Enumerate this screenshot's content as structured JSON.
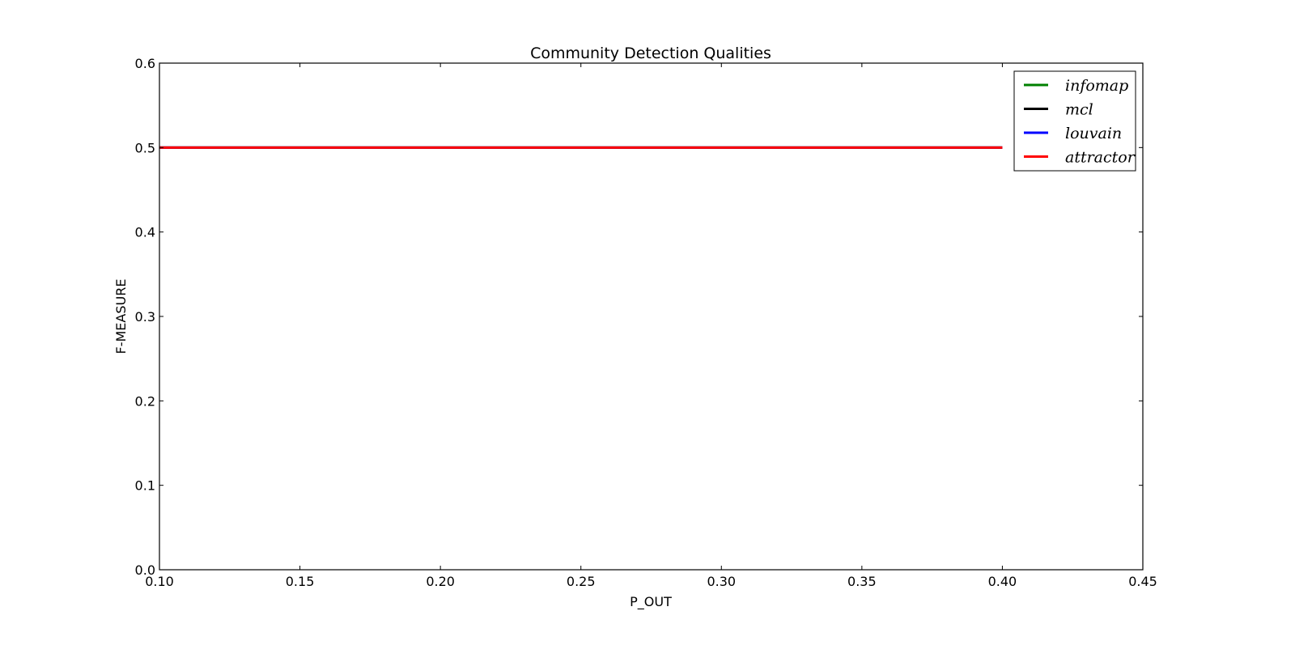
{
  "chart_data": {
    "type": "line",
    "title": "Community Detection Qualities",
    "xlabel": "P_OUT",
    "ylabel": "F-MEASURE",
    "xlim": [
      0.1,
      0.45
    ],
    "ylim": [
      0.0,
      0.6
    ],
    "xticks": [
      0.1,
      0.15,
      0.2,
      0.25,
      0.3,
      0.35,
      0.4,
      0.45
    ],
    "yticks": [
      0.0,
      0.1,
      0.2,
      0.3,
      0.4,
      0.5,
      0.6
    ],
    "xtick_labels": [
      "0.10",
      "0.15",
      "0.20",
      "0.25",
      "0.30",
      "0.35",
      "0.40",
      "0.45"
    ],
    "ytick_labels": [
      "0.0",
      "0.1",
      "0.2",
      "0.3",
      "0.4",
      "0.5",
      "0.6"
    ],
    "grid": false,
    "legend_position": "top-right",
    "x": [
      0.1,
      0.2,
      0.3,
      0.4
    ],
    "series": [
      {
        "name": "infomap",
        "color": "#008000",
        "values": [
          0.5,
          0.5,
          0.5,
          0.5
        ]
      },
      {
        "name": "mcl",
        "color": "#000000",
        "values": [
          0.5,
          0.5,
          0.5,
          0.5
        ]
      },
      {
        "name": "louvain",
        "color": "#0000ff",
        "values": [
          0.5,
          0.5,
          0.5,
          0.5
        ]
      },
      {
        "name": "attractor",
        "color": "#ff0000",
        "values": [
          0.5,
          0.5,
          0.5,
          0.5
        ]
      }
    ]
  }
}
